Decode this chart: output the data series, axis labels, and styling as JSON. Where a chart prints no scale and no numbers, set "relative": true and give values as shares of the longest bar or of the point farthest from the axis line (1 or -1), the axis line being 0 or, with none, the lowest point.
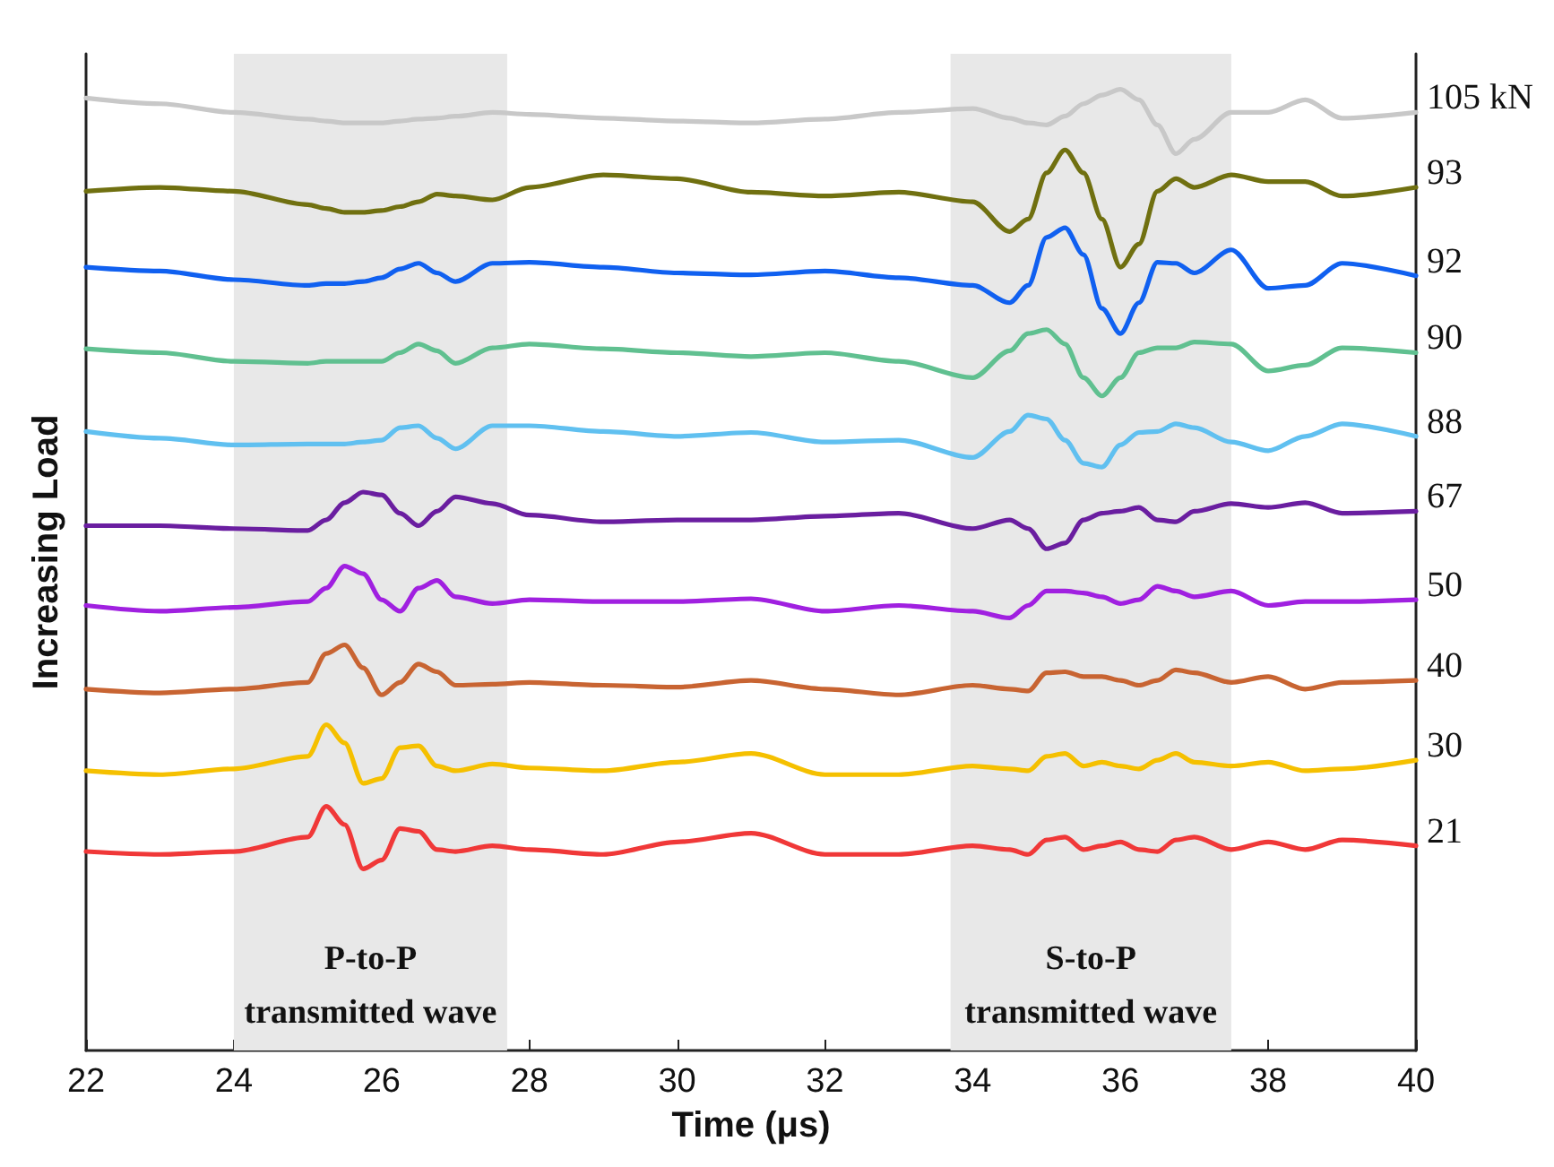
{
  "chart_data": {
    "type": "line",
    "xlabel": "Time (μs)",
    "ylabel": "Increasing Load",
    "relative": true,
    "legend": false,
    "grid": false,
    "marker": "none",
    "line_style": "solid",
    "tick_labels": "x",
    "xlim": [
      22,
      40
    ],
    "xticks": [
      22,
      24,
      26,
      28,
      30,
      32,
      34,
      36,
      38,
      40
    ],
    "x": [
      22,
      23,
      24,
      25,
      25.25,
      25.5,
      25.75,
      26,
      26.25,
      26.5,
      26.75,
      27,
      27.5,
      28,
      29,
      30,
      31,
      32,
      33,
      34,
      34.5,
      34.75,
      35,
      35.25,
      35.5,
      35.75,
      36,
      36.25,
      36.5,
      36.75,
      37,
      37.5,
      38,
      38.5,
      39,
      40
    ],
    "bands": [
      {
        "axis": "x",
        "from": 24,
        "to": 27.7,
        "label": "P-to-P\ntransmitted wave",
        "color": "#e8e8e8"
      },
      {
        "axis": "x",
        "from": 33.7,
        "to": 37.5,
        "label": "S-to-P\ntransmitted wave",
        "color": "#e8e8e8"
      }
    ],
    "series": [
      {
        "name": "105 kN",
        "color": "#c8c8c8",
        "values": [
          0.991,
          0.985,
          0.976,
          0.969,
          0.967,
          0.965,
          0.965,
          0.965,
          0.967,
          0.969,
          0.97,
          0.972,
          0.976,
          0.974,
          0.97,
          0.967,
          0.965,
          0.969,
          0.976,
          0.98,
          0.97,
          0.965,
          0.963,
          0.972,
          0.985,
          0.994,
          1.0,
          0.989,
          0.963,
          0.933,
          0.948,
          0.976,
          0.976,
          0.989,
          0.97,
          0.976
        ]
      },
      {
        "name": "93",
        "color": "#707010",
        "values": [
          0.894,
          0.898,
          0.894,
          0.88,
          0.876,
          0.872,
          0.872,
          0.874,
          0.878,
          0.883,
          0.891,
          0.889,
          0.885,
          0.898,
          0.911,
          0.907,
          0.893,
          0.889,
          0.893,
          0.883,
          0.852,
          0.865,
          0.913,
          0.937,
          0.913,
          0.865,
          0.815,
          0.839,
          0.894,
          0.907,
          0.898,
          0.911,
          0.904,
          0.904,
          0.889,
          0.898
        ]
      },
      {
        "name": "92",
        "color": "#1060f0",
        "values": [
          0.815,
          0.811,
          0.802,
          0.796,
          0.798,
          0.798,
          0.8,
          0.804,
          0.813,
          0.819,
          0.809,
          0.8,
          0.819,
          0.82,
          0.815,
          0.809,
          0.807,
          0.811,
          0.804,
          0.796,
          0.778,
          0.796,
          0.846,
          0.856,
          0.828,
          0.772,
          0.746,
          0.778,
          0.82,
          0.819,
          0.809,
          0.833,
          0.793,
          0.796,
          0.819,
          0.806
        ]
      },
      {
        "name": "90",
        "color": "#60c090",
        "values": [
          0.73,
          0.726,
          0.717,
          0.715,
          0.717,
          0.717,
          0.717,
          0.717,
          0.726,
          0.735,
          0.728,
          0.715,
          0.731,
          0.735,
          0.73,
          0.726,
          0.722,
          0.726,
          0.717,
          0.7,
          0.728,
          0.746,
          0.75,
          0.735,
          0.7,
          0.681,
          0.7,
          0.726,
          0.731,
          0.731,
          0.737,
          0.735,
          0.707,
          0.713,
          0.731,
          0.726
        ]
      },
      {
        "name": "88",
        "color": "#60c0f0",
        "values": [
          0.644,
          0.637,
          0.63,
          0.631,
          0.631,
          0.631,
          0.633,
          0.635,
          0.648,
          0.65,
          0.637,
          0.626,
          0.65,
          0.65,
          0.644,
          0.639,
          0.643,
          0.633,
          0.635,
          0.617,
          0.644,
          0.661,
          0.657,
          0.635,
          0.611,
          0.607,
          0.63,
          0.643,
          0.644,
          0.652,
          0.648,
          0.633,
          0.624,
          0.639,
          0.652,
          0.639
        ]
      },
      {
        "name": "67",
        "color": "#6a1ea0",
        "values": [
          0.546,
          0.546,
          0.543,
          0.541,
          0.552,
          0.57,
          0.581,
          0.578,
          0.559,
          0.546,
          0.561,
          0.576,
          0.569,
          0.557,
          0.55,
          0.552,
          0.552,
          0.556,
          0.559,
          0.543,
          0.552,
          0.543,
          0.522,
          0.528,
          0.552,
          0.559,
          0.561,
          0.565,
          0.552,
          0.55,
          0.561,
          0.569,
          0.565,
          0.57,
          0.559,
          0.561
        ]
      },
      {
        "name": "50",
        "color": "#a020e0",
        "values": [
          0.463,
          0.457,
          0.461,
          0.467,
          0.481,
          0.504,
          0.496,
          0.469,
          0.457,
          0.481,
          0.489,
          0.472,
          0.465,
          0.469,
          0.467,
          0.467,
          0.47,
          0.457,
          0.463,
          0.457,
          0.45,
          0.463,
          0.478,
          0.478,
          0.476,
          0.472,
          0.465,
          0.469,
          0.483,
          0.478,
          0.472,
          0.478,
          0.463,
          0.467,
          0.467,
          0.469
        ]
      },
      {
        "name": "40",
        "color": "#c86432",
        "values": [
          0.376,
          0.372,
          0.376,
          0.383,
          0.413,
          0.422,
          0.398,
          0.37,
          0.383,
          0.402,
          0.394,
          0.38,
          0.381,
          0.383,
          0.38,
          0.378,
          0.385,
          0.376,
          0.37,
          0.38,
          0.376,
          0.374,
          0.393,
          0.394,
          0.389,
          0.389,
          0.385,
          0.38,
          0.385,
          0.396,
          0.393,
          0.383,
          0.389,
          0.376,
          0.383,
          0.385
        ]
      },
      {
        "name": "30",
        "color": "#f5c000",
        "values": [
          0.291,
          0.287,
          0.293,
          0.306,
          0.339,
          0.32,
          0.278,
          0.283,
          0.315,
          0.317,
          0.296,
          0.291,
          0.298,
          0.294,
          0.291,
          0.3,
          0.309,
          0.287,
          0.287,
          0.296,
          0.293,
          0.291,
          0.306,
          0.309,
          0.296,
          0.3,
          0.296,
          0.293,
          0.302,
          0.309,
          0.3,
          0.296,
          0.3,
          0.291,
          0.293,
          0.302
        ]
      },
      {
        "name": "21",
        "color": "#f03838",
        "values": [
          0.207,
          0.204,
          0.207,
          0.222,
          0.254,
          0.235,
          0.189,
          0.198,
          0.231,
          0.228,
          0.209,
          0.207,
          0.213,
          0.209,
          0.204,
          0.217,
          0.226,
          0.204,
          0.204,
          0.213,
          0.209,
          0.204,
          0.219,
          0.222,
          0.209,
          0.213,
          0.217,
          0.209,
          0.207,
          0.219,
          0.222,
          0.209,
          0.217,
          0.209,
          0.219,
          0.213
        ]
      }
    ]
  }
}
